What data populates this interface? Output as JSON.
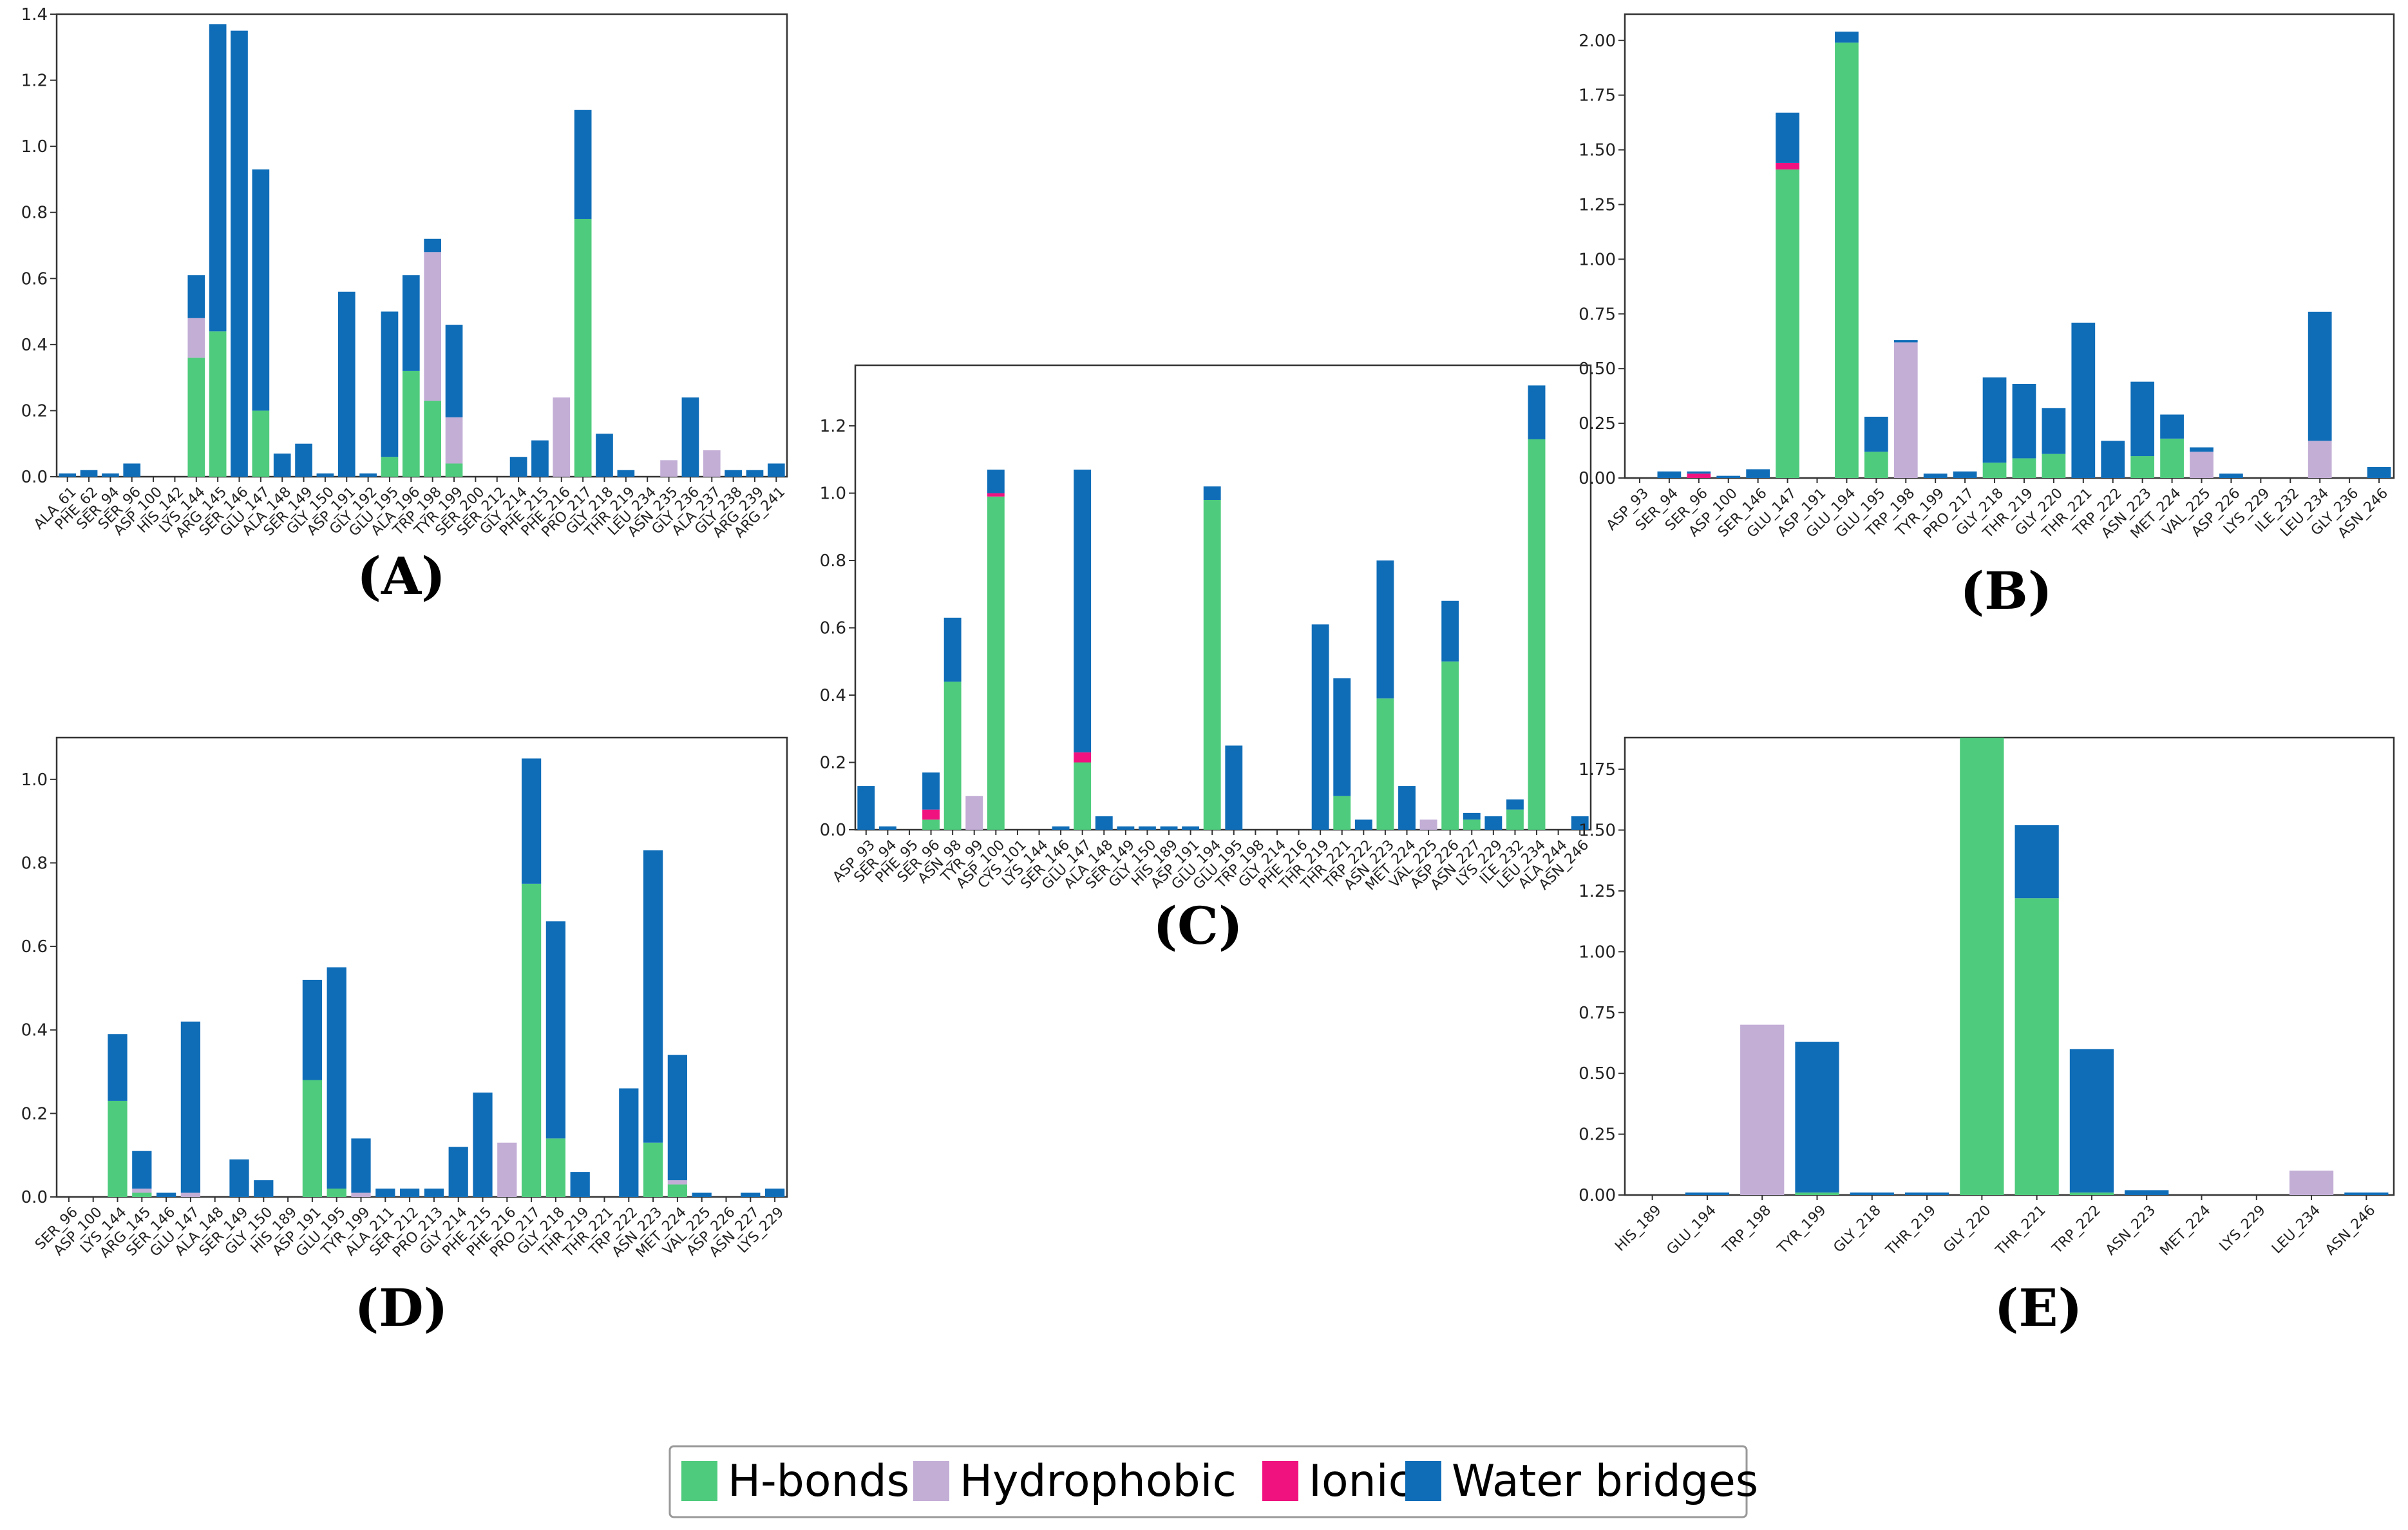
{
  "legend": {
    "items": [
      {
        "label": "H-bonds",
        "color": "#4ecb7c"
      },
      {
        "label": "Hydrophobic",
        "color": "#c3aed6"
      },
      {
        "label": "Ionic",
        "color": "#f0127f"
      },
      {
        "label": "Water bridges",
        "color": "#0f6db8"
      }
    ]
  },
  "chart_data": [
    {
      "type": "bar",
      "stacked": true,
      "panel_label": "(A)",
      "ylim": [
        0,
        1.4
      ],
      "yticks": [
        0.0,
        0.2,
        0.4,
        0.6,
        0.8,
        1.0,
        1.2,
        1.4
      ],
      "ytick_labels": [
        "0.0",
        "0.2",
        "0.4",
        "0.6",
        "0.8",
        "1.0",
        "1.2",
        "1.4"
      ],
      "categories": [
        "ALA_61",
        "PHE_62",
        "SER_94",
        "SER_96",
        "ASP_100",
        "HIS_142",
        "LYS_144",
        "ARG_145",
        "SER_146",
        "GLU_147",
        "ALA_148",
        "SER_149",
        "GLY_150",
        "ASP_191",
        "GLY_192",
        "GLU_195",
        "ALA_196",
        "TRP_198",
        "TYR_199",
        "SER_200",
        "SER_212",
        "GLY_214",
        "PHE_215",
        "PHE_216",
        "PRO_217",
        "GLY_218",
        "THR_219",
        "LEU_234",
        "ASN_235",
        "GLY_236",
        "ALA_237",
        "GLY_238",
        "ARG_239",
        "ARG_241"
      ],
      "series": [
        {
          "name": "H-bonds",
          "values": [
            0,
            0,
            0,
            0,
            0,
            0,
            0.36,
            0.44,
            0,
            0.2,
            0,
            0,
            0,
            0,
            0,
            0.06,
            0.32,
            0.23,
            0.04,
            0,
            0,
            0,
            0,
            0,
            0.78,
            0,
            0,
            0,
            0,
            0,
            0,
            0,
            0,
            0
          ]
        },
        {
          "name": "Hydrophobic",
          "values": [
            0,
            0,
            0,
            0,
            0,
            0,
            0.12,
            0,
            0,
            0,
            0,
            0,
            0,
            0,
            0,
            0,
            0,
            0.45,
            0.14,
            0,
            0,
            0,
            0,
            0.24,
            0,
            0,
            0,
            0,
            0.05,
            0,
            0.08,
            0,
            0,
            0
          ]
        },
        {
          "name": "Ionic",
          "values": [
            0,
            0,
            0,
            0,
            0,
            0,
            0,
            0,
            0,
            0,
            0,
            0,
            0,
            0,
            0,
            0,
            0,
            0,
            0,
            0,
            0,
            0,
            0,
            0,
            0,
            0,
            0,
            0,
            0,
            0,
            0,
            0,
            0,
            0
          ]
        },
        {
          "name": "Water bridges",
          "values": [
            0.01,
            0.02,
            0.01,
            0.04,
            0,
            0,
            0.13,
            0.93,
            1.35,
            0.73,
            0.07,
            0.1,
            0.01,
            0.56,
            0.01,
            0.44,
            0.29,
            0.04,
            0.28,
            0,
            0,
            0.06,
            0.11,
            0,
            0.33,
            0.13,
            0.02,
            0,
            0,
            0.24,
            0,
            0.02,
            0.02,
            0.04
          ]
        }
      ]
    },
    {
      "type": "bar",
      "stacked": true,
      "panel_label": "(B)",
      "ylim": [
        0,
        2.12
      ],
      "yticks": [
        0.0,
        0.25,
        0.5,
        0.75,
        1.0,
        1.25,
        1.5,
        1.75,
        2.0
      ],
      "ytick_labels": [
        "0.00",
        "0.25",
        "0.50",
        "0.75",
        "1.00",
        "1.25",
        "1.50",
        "1.75",
        "2.00"
      ],
      "categories": [
        "ASP_93",
        "SER_94",
        "SER_96",
        "ASP_100",
        "SER_146",
        "GLU_147",
        "ASP_191",
        "GLU_194",
        "GLU_195",
        "TRP_198",
        "TYR_199",
        "PRO_217",
        "GLY_218",
        "THR_219",
        "GLY_220",
        "THR_221",
        "TRP_222",
        "ASN_223",
        "MET_224",
        "VAL_225",
        "ASP_226",
        "LYS_229",
        "ILE_232",
        "LEU_234",
        "GLY_236",
        "ASN_246"
      ],
      "series": [
        {
          "name": "H-bonds",
          "values": [
            0,
            0,
            0,
            0,
            0,
            1.41,
            0,
            1.99,
            0.12,
            0,
            0,
            0,
            0.07,
            0.09,
            0.11,
            0,
            0,
            0.1,
            0.18,
            0,
            0,
            0,
            0,
            0,
            0,
            0
          ]
        },
        {
          "name": "Hydrophobic",
          "values": [
            0,
            0,
            0,
            0,
            0,
            0,
            0,
            0,
            0,
            0.62,
            0,
            0,
            0,
            0,
            0,
            0,
            0,
            0,
            0,
            0.12,
            0,
            0,
            0,
            0.17,
            0,
            0
          ]
        },
        {
          "name": "Ionic",
          "values": [
            0,
            0,
            0.02,
            0,
            0,
            0.03,
            0,
            0,
            0,
            0,
            0,
            0,
            0,
            0,
            0,
            0,
            0,
            0,
            0,
            0,
            0,
            0,
            0,
            0,
            0,
            0
          ]
        },
        {
          "name": "Water bridges",
          "values": [
            0,
            0.03,
            0.01,
            0.01,
            0.04,
            0.23,
            0,
            0.05,
            0.16,
            0.01,
            0.02,
            0.03,
            0.39,
            0.34,
            0.21,
            0.71,
            0.17,
            0.34,
            0.11,
            0.02,
            0.02,
            0,
            0,
            0.59,
            0,
            0.05
          ]
        }
      ]
    },
    {
      "type": "bar",
      "stacked": true,
      "panel_label": "(C)",
      "ylim": [
        0,
        1.38
      ],
      "yticks": [
        0.0,
        0.2,
        0.4,
        0.6,
        0.8,
        1.0,
        1.2
      ],
      "ytick_labels": [
        "0.0",
        "0.2",
        "0.4",
        "0.6",
        "0.8",
        "1.0",
        "1.2"
      ],
      "categories": [
        "ASP_93",
        "SER_94",
        "PHE_95",
        "SER_96",
        "ASN_98",
        "TYR_99",
        "ASP_100",
        "CYS_101",
        "LYS_144",
        "SER_146",
        "GLU_147",
        "ALA_148",
        "SER_149",
        "GLY_150",
        "HIS_189",
        "ASP_191",
        "GLU_194",
        "GLU_195",
        "TRP_198",
        "GLY_214",
        "PHE_216",
        "THR_219",
        "THR_221",
        "TRP_222",
        "ASN_223",
        "MET_224",
        "VAL_225",
        "ASP_226",
        "ASN_227",
        "LYS_229",
        "ILE_232",
        "LEU_234",
        "ALA_244",
        "ASN_246"
      ],
      "series": [
        {
          "name": "H-bonds",
          "values": [
            0,
            0,
            0,
            0.03,
            0.44,
            0,
            0.99,
            0,
            0,
            0,
            0.2,
            0,
            0,
            0,
            0,
            0,
            0.98,
            0,
            0,
            0,
            0,
            0,
            0.1,
            0,
            0.39,
            0,
            0,
            0.5,
            0.03,
            0,
            0.06,
            1.16,
            0,
            0
          ]
        },
        {
          "name": "Hydrophobic",
          "values": [
            0,
            0,
            0,
            0,
            0,
            0.1,
            0,
            0,
            0,
            0,
            0,
            0,
            0,
            0,
            0,
            0,
            0,
            0,
            0,
            0,
            0,
            0,
            0,
            0,
            0,
            0,
            0.03,
            0,
            0,
            0,
            0,
            0,
            0,
            0
          ]
        },
        {
          "name": "Ionic",
          "values": [
            0,
            0,
            0,
            0.03,
            0,
            0,
            0.01,
            0,
            0,
            0,
            0.03,
            0,
            0,
            0,
            0,
            0,
            0,
            0,
            0,
            0,
            0,
            0,
            0,
            0,
            0,
            0,
            0,
            0,
            0,
            0,
            0,
            0,
            0,
            0
          ]
        },
        {
          "name": "Water bridges",
          "values": [
            0.13,
            0.01,
            0,
            0.11,
            0.19,
            0,
            0.07,
            0,
            0,
            0.01,
            0.84,
            0.04,
            0.01,
            0.01,
            0.01,
            0.01,
            0.04,
            0.25,
            0,
            0,
            0,
            0.61,
            0.35,
            0.03,
            0.41,
            0.13,
            0,
            0.18,
            0.02,
            0.04,
            0.03,
            0.16,
            0,
            0.04
          ]
        }
      ]
    },
    {
      "type": "bar",
      "stacked": true,
      "panel_label": "(D)",
      "ylim": [
        0,
        1.1
      ],
      "yticks": [
        0.0,
        0.2,
        0.4,
        0.6,
        0.8,
        1.0
      ],
      "ytick_labels": [
        "0.0",
        "0.2",
        "0.4",
        "0.6",
        "0.8",
        "1.0"
      ],
      "categories": [
        "SER_96",
        "ASP_100",
        "LYS_144",
        "ARG_145",
        "SER_146",
        "GLU_147",
        "ALA_148",
        "SER_149",
        "GLY_150",
        "HIS_189",
        "ASP_191",
        "GLU_195",
        "TYR_199",
        "ALA_211",
        "SER_212",
        "PRO_213",
        "GLY_214",
        "PHE_215",
        "PHE_216",
        "PRO_217",
        "GLY_218",
        "THR_219",
        "THR_221",
        "TRP_222",
        "ASN_223",
        "MET_224",
        "VAL_225",
        "ASP_226",
        "ASN_227",
        "LYS_229"
      ],
      "series": [
        {
          "name": "H-bonds",
          "values": [
            0,
            0,
            0.23,
            0.01,
            0,
            0,
            0,
            0,
            0,
            0,
            0.28,
            0.02,
            0,
            0,
            0,
            0,
            0,
            0,
            0,
            0.75,
            0.14,
            0,
            0,
            0,
            0.13,
            0.03,
            0,
            0,
            0,
            0
          ]
        },
        {
          "name": "Hydrophobic",
          "values": [
            0,
            0,
            0,
            0.01,
            0,
            0.01,
            0,
            0,
            0,
            0,
            0,
            0,
            0.01,
            0,
            0,
            0,
            0,
            0,
            0.13,
            0,
            0,
            0,
            0,
            0,
            0,
            0.01,
            0,
            0,
            0,
            0
          ]
        },
        {
          "name": "Ionic",
          "values": [
            0,
            0,
            0,
            0,
            0,
            0,
            0,
            0,
            0,
            0,
            0,
            0,
            0,
            0,
            0,
            0,
            0,
            0,
            0,
            0,
            0,
            0,
            0,
            0,
            0,
            0,
            0,
            0,
            0,
            0
          ]
        },
        {
          "name": "Water bridges",
          "values": [
            0,
            0,
            0.16,
            0.09,
            0.01,
            0.41,
            0,
            0.09,
            0.04,
            0,
            0.24,
            0.53,
            0.13,
            0.02,
            0.02,
            0.02,
            0.12,
            0.25,
            0,
            0.3,
            0.52,
            0.06,
            0,
            0.26,
            0.7,
            0.3,
            0.01,
            0,
            0.01,
            0.02
          ]
        }
      ]
    },
    {
      "type": "bar",
      "stacked": true,
      "panel_label": "(E)",
      "ylim": [
        0,
        1.88
      ],
      "yticks": [
        0.0,
        0.25,
        0.5,
        0.75,
        1.0,
        1.25,
        1.5,
        1.75
      ],
      "ytick_labels": [
        "0.00",
        "0.25",
        "0.50",
        "0.75",
        "1.00",
        "1.25",
        "1.50",
        "1.75"
      ],
      "categories": [
        "HIS_189",
        "GLU_194",
        "TRP_198",
        "TYR_199",
        "GLY_218",
        "THR_219",
        "GLY_220",
        "THR_221",
        "TRP_222",
        "ASN_223",
        "MET_224",
        "LYS_229",
        "LEU_234",
        "ASN_246"
      ],
      "series": [
        {
          "name": "H-bonds",
          "values": [
            0,
            0,
            0,
            0.01,
            0,
            0,
            1.88,
            1.22,
            0.01,
            0,
            0,
            0,
            0,
            0
          ]
        },
        {
          "name": "Hydrophobic",
          "values": [
            0,
            0,
            0.7,
            0,
            0,
            0,
            0,
            0,
            0,
            0,
            0,
            0,
            0.1,
            0
          ]
        },
        {
          "name": "Ionic",
          "values": [
            0,
            0,
            0,
            0,
            0,
            0,
            0,
            0,
            0,
            0,
            0,
            0,
            0,
            0
          ]
        },
        {
          "name": "Water bridges",
          "values": [
            0,
            0.01,
            0,
            0.62,
            0.01,
            0.01,
            0,
            0.3,
            0.59,
            0.02,
            0,
            0,
            0,
            0.01
          ]
        }
      ]
    }
  ]
}
